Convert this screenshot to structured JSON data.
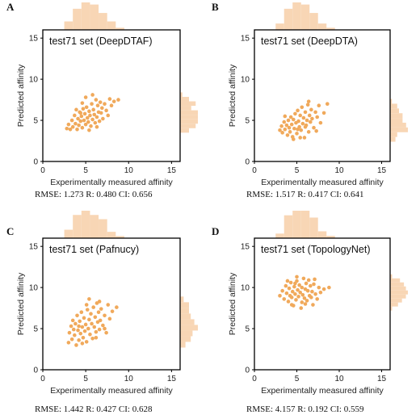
{
  "colors": {
    "point": "#F0A95B",
    "hist": "#F8D6B5",
    "frame": "#000000"
  },
  "chart_data": [
    {
      "type": "scatter",
      "letter": "A",
      "title": "test71 set (DeepDTAF)",
      "xlabel": "Experimentally measured affinity",
      "ylabel": "Predicted affinity",
      "xlim": [
        0,
        16
      ],
      "ylim": [
        0,
        16
      ],
      "xticks": [
        "0",
        "5",
        "10",
        "15"
      ],
      "yticks": [
        "0",
        "5",
        "10",
        "15"
      ],
      "metrics": "RMSE: 1.273 R: 0.480 CI: 0.656",
      "points": [
        [
          2.8,
          4.0
        ],
        [
          3.0,
          4.5
        ],
        [
          3.2,
          3.9
        ],
        [
          3.4,
          5.0
        ],
        [
          3.5,
          4.2
        ],
        [
          3.7,
          5.6
        ],
        [
          3.8,
          4.6
        ],
        [
          4.0,
          3.9
        ],
        [
          4.1,
          5.2
        ],
        [
          4.2,
          4.4
        ],
        [
          4.3,
          6.0
        ],
        [
          4.4,
          4.9
        ],
        [
          4.5,
          5.5
        ],
        [
          4.6,
          4.1
        ],
        [
          4.7,
          6.4
        ],
        [
          4.8,
          5.0
        ],
        [
          4.9,
          5.8
        ],
        [
          5.0,
          4.5
        ],
        [
          5.1,
          6.6
        ],
        [
          5.2,
          5.3
        ],
        [
          5.3,
          4.8
        ],
        [
          5.4,
          6.1
        ],
        [
          5.5,
          5.6
        ],
        [
          5.6,
          4.3
        ],
        [
          5.7,
          7.0
        ],
        [
          5.8,
          5.1
        ],
        [
          5.9,
          6.3
        ],
        [
          6.0,
          5.7
        ],
        [
          6.1,
          4.7
        ],
        [
          6.2,
          7.5
        ],
        [
          6.3,
          5.4
        ],
        [
          6.4,
          6.8
        ],
        [
          6.5,
          6.0
        ],
        [
          6.6,
          4.9
        ],
        [
          6.7,
          7.2
        ],
        [
          6.8,
          5.9
        ],
        [
          6.9,
          6.5
        ],
        [
          7.0,
          5.2
        ],
        [
          7.2,
          7.0
        ],
        [
          7.4,
          6.2
        ],
        [
          7.6,
          5.6
        ],
        [
          7.8,
          7.6
        ],
        [
          8.0,
          6.8
        ],
        [
          8.3,
          7.3
        ],
        [
          8.8,
          7.5
        ],
        [
          5.0,
          7.8
        ],
        [
          5.8,
          8.1
        ],
        [
          4.6,
          7.1
        ],
        [
          3.9,
          6.3
        ],
        [
          6.3,
          4.2
        ],
        [
          5.4,
          3.8
        ],
        [
          4.4,
          5.9
        ]
      ]
    },
    {
      "type": "scatter",
      "letter": "B",
      "title": "test71 set (DeepDTA)",
      "xlabel": "Experimentally measured affinity",
      "ylabel": "Predicted affinity",
      "xlim": [
        0,
        16
      ],
      "ylim": [
        0,
        16
      ],
      "xticks": [
        "0",
        "5",
        "10",
        "15"
      ],
      "yticks": [
        "0",
        "5",
        "10",
        "15"
      ],
      "metrics": "RMSE: 1.517 R: 0.417 CI: 0.641",
      "points": [
        [
          3.0,
          3.8
        ],
        [
          3.2,
          4.3
        ],
        [
          3.3,
          3.5
        ],
        [
          3.5,
          4.8
        ],
        [
          3.6,
          3.9
        ],
        [
          3.8,
          4.4
        ],
        [
          3.9,
          3.2
        ],
        [
          4.0,
          5.0
        ],
        [
          4.1,
          4.1
        ],
        [
          4.2,
          3.6
        ],
        [
          4.3,
          5.4
        ],
        [
          4.4,
          4.5
        ],
        [
          4.5,
          3.0
        ],
        [
          4.6,
          5.1
        ],
        [
          4.7,
          4.0
        ],
        [
          4.8,
          5.8
        ],
        [
          4.9,
          4.7
        ],
        [
          5.0,
          3.4
        ],
        [
          5.1,
          6.2
        ],
        [
          5.2,
          4.9
        ],
        [
          5.3,
          4.2
        ],
        [
          5.4,
          5.6
        ],
        [
          5.5,
          3.8
        ],
        [
          5.6,
          6.6
        ],
        [
          5.7,
          4.6
        ],
        [
          5.8,
          5.3
        ],
        [
          5.9,
          2.9
        ],
        [
          6.0,
          6.0
        ],
        [
          6.1,
          4.4
        ],
        [
          6.2,
          5.0
        ],
        [
          6.3,
          6.9
        ],
        [
          6.4,
          3.6
        ],
        [
          6.5,
          5.6
        ],
        [
          6.6,
          4.8
        ],
        [
          6.7,
          6.3
        ],
        [
          6.8,
          5.2
        ],
        [
          7.0,
          4.1
        ],
        [
          7.2,
          6.0
        ],
        [
          7.4,
          5.4
        ],
        [
          7.6,
          6.8
        ],
        [
          7.8,
          4.7
        ],
        [
          8.2,
          5.9
        ],
        [
          8.6,
          7.0
        ],
        [
          4.6,
          2.7
        ],
        [
          5.4,
          2.9
        ],
        [
          6.4,
          7.3
        ],
        [
          3.6,
          5.5
        ],
        [
          5.1,
          3.9
        ],
        [
          6.0,
          4.2
        ],
        [
          7.3,
          3.7
        ]
      ]
    },
    {
      "type": "scatter",
      "letter": "C",
      "title": "test71 set (Pafnucy)",
      "xlabel": "Experimentally measured affinity",
      "ylabel": "Predicted affinity",
      "xlim": [
        0,
        16
      ],
      "ylim": [
        0,
        16
      ],
      "xticks": [
        "0",
        "5",
        "10",
        "15"
      ],
      "yticks": [
        "0",
        "5",
        "10",
        "15"
      ],
      "metrics": "RMSE: 1.442 R: 0.427 CI: 0.628",
      "points": [
        [
          3.0,
          3.3
        ],
        [
          3.1,
          4.5
        ],
        [
          3.3,
          5.3
        ],
        [
          3.4,
          3.7
        ],
        [
          3.5,
          6.0
        ],
        [
          3.7,
          4.2
        ],
        [
          3.8,
          5.6
        ],
        [
          3.9,
          3.0
        ],
        [
          4.0,
          6.6
        ],
        [
          4.1,
          4.8
        ],
        [
          4.2,
          3.6
        ],
        [
          4.3,
          5.9
        ],
        [
          4.4,
          4.4
        ],
        [
          4.5,
          7.0
        ],
        [
          4.6,
          5.2
        ],
        [
          4.7,
          3.9
        ],
        [
          4.8,
          6.3
        ],
        [
          4.9,
          4.7
        ],
        [
          5.0,
          5.5
        ],
        [
          5.1,
          3.4
        ],
        [
          5.2,
          7.3
        ],
        [
          5.3,
          5.0
        ],
        [
          5.4,
          6.1
        ],
        [
          5.5,
          4.3
        ],
        [
          5.6,
          6.8
        ],
        [
          5.7,
          5.6
        ],
        [
          5.8,
          3.8
        ],
        [
          5.9,
          7.6
        ],
        [
          6.0,
          5.2
        ],
        [
          6.1,
          6.4
        ],
        [
          6.2,
          4.6
        ],
        [
          6.3,
          8.1
        ],
        [
          6.4,
          5.8
        ],
        [
          6.5,
          7.0
        ],
        [
          6.6,
          4.9
        ],
        [
          6.7,
          6.0
        ],
        [
          6.8,
          7.4
        ],
        [
          7.0,
          5.4
        ],
        [
          7.2,
          6.6
        ],
        [
          7.4,
          4.5
        ],
        [
          7.6,
          7.9
        ],
        [
          7.8,
          6.2
        ],
        [
          8.1,
          7.1
        ],
        [
          8.6,
          7.6
        ],
        [
          5.4,
          8.6
        ],
        [
          4.6,
          3.2
        ],
        [
          3.6,
          4.9
        ],
        [
          6.2,
          3.9
        ],
        [
          5.1,
          7.9
        ],
        [
          4.2,
          5.3
        ],
        [
          6.6,
          8.3
        ],
        [
          7.2,
          5.0
        ]
      ]
    },
    {
      "type": "scatter",
      "letter": "D",
      "title": "test71 set (TopologyNet)",
      "xlabel": "Experimentally measured affinity",
      "ylabel": "Predicted affinity",
      "xlim": [
        0,
        16
      ],
      "ylim": [
        0,
        16
      ],
      "xticks": [
        "0",
        "5",
        "10",
        "15"
      ],
      "yticks": [
        "0",
        "5",
        "10",
        "15"
      ],
      "metrics": "RMSE: 4.157 R: 0.192 CI: 0.559",
      "points": [
        [
          3.0,
          9.0
        ],
        [
          3.3,
          9.6
        ],
        [
          3.5,
          8.6
        ],
        [
          3.7,
          10.2
        ],
        [
          3.8,
          9.3
        ],
        [
          4.0,
          8.3
        ],
        [
          4.1,
          9.9
        ],
        [
          4.2,
          9.0
        ],
        [
          4.3,
          10.6
        ],
        [
          4.4,
          8.8
        ],
        [
          4.5,
          9.5
        ],
        [
          4.6,
          7.8
        ],
        [
          4.7,
          10.1
        ],
        [
          4.8,
          9.2
        ],
        [
          4.9,
          8.5
        ],
        [
          5.0,
          10.8
        ],
        [
          5.1,
          9.7
        ],
        [
          5.2,
          8.9
        ],
        [
          5.3,
          10.3
        ],
        [
          5.4,
          9.4
        ],
        [
          5.5,
          7.5
        ],
        [
          5.6,
          10.0
        ],
        [
          5.7,
          9.1
        ],
        [
          5.8,
          11.1
        ],
        [
          5.9,
          8.7
        ],
        [
          6.0,
          9.8
        ],
        [
          6.1,
          10.5
        ],
        [
          6.2,
          8.4
        ],
        [
          6.3,
          9.6
        ],
        [
          6.4,
          10.9
        ],
        [
          6.5,
          9.0
        ],
        [
          6.6,
          10.2
        ],
        [
          6.7,
          8.8
        ],
        [
          6.8,
          9.5
        ],
        [
          7.0,
          10.4
        ],
        [
          7.2,
          9.2
        ],
        [
          7.4,
          8.6
        ],
        [
          7.6,
          10.0
        ],
        [
          7.8,
          9.4
        ],
        [
          8.2,
          9.8
        ],
        [
          8.8,
          10.0
        ],
        [
          5.0,
          11.3
        ],
        [
          4.4,
          7.9
        ],
        [
          6.0,
          8.0
        ],
        [
          3.9,
          10.8
        ],
        [
          5.6,
          8.2
        ],
        [
          7.1,
          11.0
        ],
        [
          4.8,
          10.5
        ],
        [
          6.9,
          7.9
        ]
      ]
    }
  ]
}
